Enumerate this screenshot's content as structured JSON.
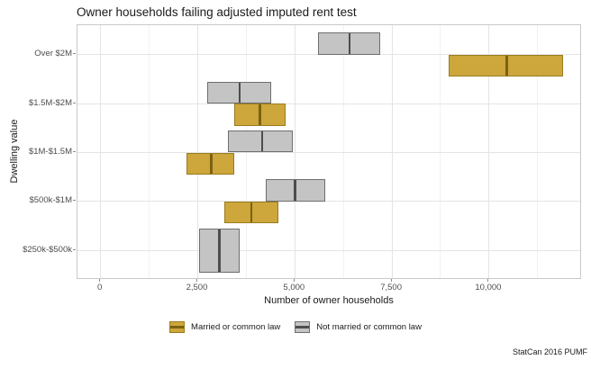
{
  "chart_data": {
    "type": "crossbar",
    "orientation": "horizontal",
    "title": "Owner households failing adjusted imputed rent test",
    "xlabel": "Number of owner households",
    "ylabel": "Dwelling value",
    "caption": "StatCan 2016 PUMF",
    "categories": [
      "Over $2M",
      "$1.5M-$2M",
      "$1M-$1.5M",
      "$500k-$1M",
      "$250k-$500k"
    ],
    "x_axis": {
      "ticks": [
        0,
        2500,
        5000,
        7500,
        10000
      ],
      "tick_labels": [
        "0",
        "2,500",
        "5,000",
        "7,500",
        "10,000"
      ],
      "minor_ticks": [
        1250,
        3750,
        6250,
        8750,
        11250
      ],
      "xlim": [
        -596,
        12391
      ]
    },
    "grid": true,
    "legend_position": "bottom",
    "row_order_top_to_bottom": [
      "Not married or common law",
      "Married or common law"
    ],
    "series": [
      {
        "name": "Married or common law",
        "fill": "#CDA63C",
        "stroke": "#9A7C1E",
        "midline": "#7C6210",
        "values": [
          {
            "min": 8950,
            "mid": 10450,
            "max": 11900
          },
          {
            "min": 3450,
            "mid": 4100,
            "max": 4770
          },
          {
            "min": 2220,
            "mid": 2840,
            "max": 3450
          },
          {
            "min": 3180,
            "mid": 3870,
            "max": 4570
          },
          null
        ]
      },
      {
        "name": "Not married or common law",
        "fill": "#C4C4C4",
        "stroke": "#6E6E6E",
        "midline": "#4D4D4D",
        "values": [
          {
            "min": 5600,
            "mid": 6400,
            "max": 7200
          },
          {
            "min": 2750,
            "mid": 3570,
            "max": 4400
          },
          {
            "min": 3280,
            "mid": 4150,
            "max": 4950
          },
          {
            "min": 4250,
            "mid": 5000,
            "max": 5790
          },
          {
            "min": 2530,
            "mid": 3050,
            "max": 3590
          }
        ]
      }
    ]
  }
}
